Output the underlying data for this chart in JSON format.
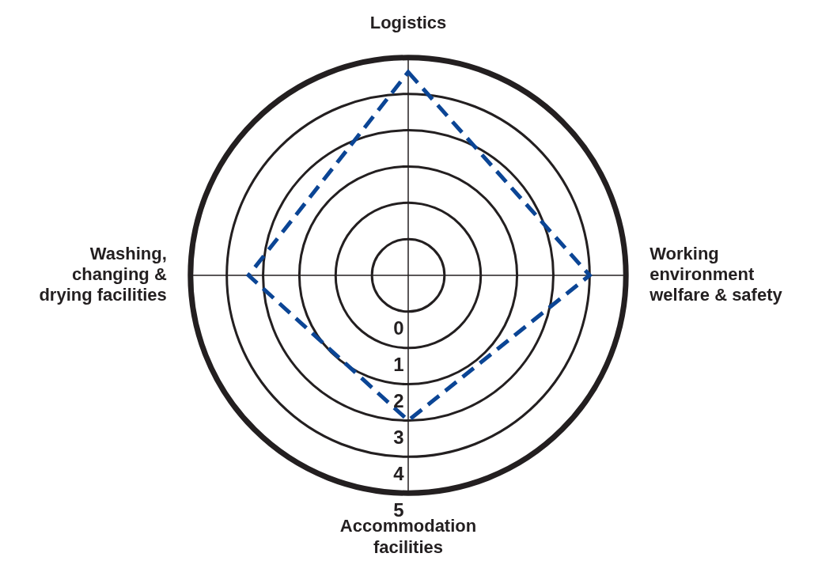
{
  "chart_data": {
    "type": "radar",
    "categories": [
      "Logistics",
      "Working\nenvironment\nwelfare & safety",
      "Accommodation\nfacilities",
      "Washing,\nchanging &\ndrying facilities"
    ],
    "series": [
      {
        "color": "#0b4595",
        "values": [
          4.6,
          4,
          3,
          3.4
        ]
      }
    ],
    "ylim": [
      -1,
      5
    ],
    "yticks": [
      0,
      1,
      2,
      3,
      4,
      5
    ],
    "grid": true,
    "legend": false,
    "marker": "none",
    "line_style": "dashed"
  }
}
